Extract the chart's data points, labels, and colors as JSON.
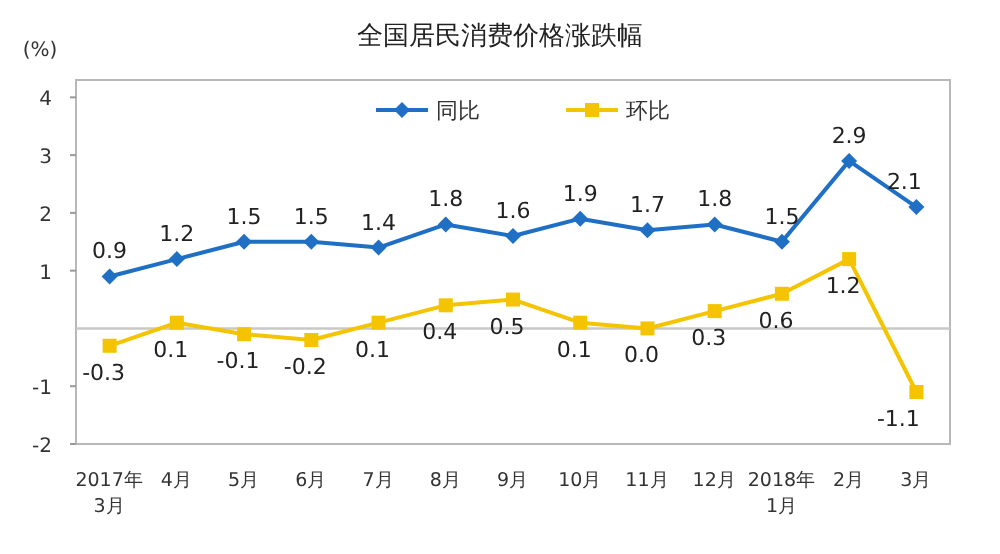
{
  "chart_data": {
    "type": "line",
    "title": "全国居民消费价格涨跌幅",
    "ylabel": "(%)",
    "categories": [
      "2017年 3月",
      "4月",
      "5月",
      "6月",
      "7月",
      "8月",
      "9月",
      "10月",
      "11月",
      "12月",
      "2018年 1月",
      "2月",
      "3月"
    ],
    "series": [
      {
        "name": "同比",
        "color": "#1f6fc5",
        "marker": "diamond",
        "values": [
          0.9,
          1.2,
          1.5,
          1.5,
          1.4,
          1.8,
          1.6,
          1.9,
          1.7,
          1.8,
          1.5,
          2.9,
          2.1
        ],
        "value_labels": [
          "0.9",
          "1.2",
          "1.5",
          "1.5",
          "1.4",
          "1.8",
          "1.6",
          "1.9",
          "1.7",
          "1.8",
          "1.5",
          "2.9",
          "2.1"
        ]
      },
      {
        "name": "环比",
        "color": "#f5c400",
        "marker": "square",
        "values": [
          -0.3,
          0.1,
          -0.1,
          -0.2,
          0.1,
          0.4,
          0.5,
          0.1,
          0.0,
          0.3,
          0.6,
          1.2,
          -1.1
        ],
        "value_labels": [
          "-0.3",
          "0.1",
          "-0.1",
          "-0.2",
          "0.1",
          "0.4",
          "0.5",
          "0.1",
          "0.0",
          "0.3",
          "0.6",
          "1.2",
          "-1.1"
        ]
      }
    ],
    "ylim": [
      -2,
      4.3
    ],
    "yticks": [
      -2,
      -1,
      1,
      2,
      3,
      4
    ],
    "ref_lines": [
      {
        "axis": "y",
        "value": 0,
        "color": "#c8c8c8"
      }
    ],
    "legend": "top",
    "grid": false,
    "line_style": "solid"
  }
}
